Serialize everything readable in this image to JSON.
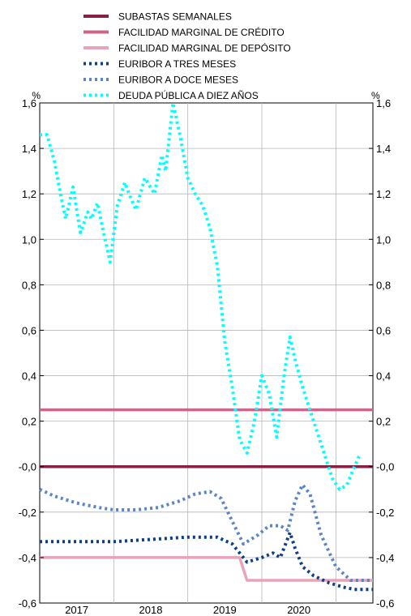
{
  "chart_data": {
    "type": "line",
    "ylabel_left": "%",
    "ylabel_right": "%",
    "ylim": [
      -0.6,
      1.6
    ],
    "yticks": [
      1.6,
      1.4,
      1.2,
      1.0,
      0.8,
      0.6,
      0.4,
      0.2,
      0.0,
      -0.2,
      -0.4,
      -0.6
    ],
    "ytick_labels": [
      "1,6",
      "1,4",
      "1,2",
      "1,0",
      "0,8",
      "0,6",
      "0,4",
      "0,2",
      "-0,0",
      "-0,2",
      "-0,4",
      "-0,6"
    ],
    "xlim": [
      2016.5,
      2021.0
    ],
    "year_boundaries": [
      2017.5,
      2018.5,
      2019.5,
      2020.5
    ],
    "xtick_labels": [
      {
        "label": "2017",
        "x": 2017.0
      },
      {
        "label": "2018",
        "x": 2018.0
      },
      {
        "label": "2019",
        "x": 2019.0
      },
      {
        "label": "2020",
        "x": 2020.0
      }
    ],
    "grid": true,
    "legend_position": "top-center",
    "series": [
      {
        "name": "SUBASTAS SEMANALES",
        "color": "#8a1f44",
        "style": "solid",
        "points": [
          [
            2016.5,
            0.0
          ],
          [
            2021.0,
            0.0
          ]
        ]
      },
      {
        "name": "FACILIDAD MARGINAL DE CRÉDITO",
        "color": "#cc6688",
        "style": "solid",
        "points": [
          [
            2016.5,
            0.25
          ],
          [
            2021.0,
            0.25
          ]
        ]
      },
      {
        "name": "FACILIDAD MARGINAL DE DEPÓSITO",
        "color": "#e8a3b8",
        "style": "solid",
        "points": [
          [
            2016.5,
            -0.4
          ],
          [
            2019.2,
            -0.4
          ],
          [
            2019.3,
            -0.5
          ],
          [
            2021.0,
            -0.5
          ]
        ]
      },
      {
        "name": "EURIBOR A TRES MESES",
        "color": "#0b3f8a",
        "style": "dotted",
        "points": [
          [
            2016.5,
            -0.33
          ],
          [
            2017.0,
            -0.33
          ],
          [
            2017.5,
            -0.33
          ],
          [
            2018.0,
            -0.32
          ],
          [
            2018.5,
            -0.31
          ],
          [
            2018.9,
            -0.31
          ],
          [
            2019.1,
            -0.34
          ],
          [
            2019.3,
            -0.42
          ],
          [
            2019.5,
            -0.4
          ],
          [
            2019.65,
            -0.38
          ],
          [
            2019.75,
            -0.4
          ],
          [
            2019.88,
            -0.29
          ],
          [
            2019.95,
            -0.36
          ],
          [
            2020.05,
            -0.44
          ],
          [
            2020.2,
            -0.48
          ],
          [
            2020.4,
            -0.51
          ],
          [
            2020.6,
            -0.53
          ],
          [
            2020.75,
            -0.54
          ],
          [
            2020.8,
            -0.54
          ],
          [
            2021.0,
            -0.54
          ]
        ]
      },
      {
        "name": "EURIBOR A DOCE MESES",
        "color": "#5a86c5",
        "style": "dotted",
        "points": [
          [
            2016.5,
            -0.1
          ],
          [
            2016.7,
            -0.13
          ],
          [
            2017.0,
            -0.16
          ],
          [
            2017.3,
            -0.18
          ],
          [
            2017.5,
            -0.19
          ],
          [
            2017.8,
            -0.19
          ],
          [
            2018.1,
            -0.18
          ],
          [
            2018.4,
            -0.15
          ],
          [
            2018.6,
            -0.12
          ],
          [
            2018.8,
            -0.11
          ],
          [
            2018.95,
            -0.14
          ],
          [
            2019.1,
            -0.24
          ],
          [
            2019.25,
            -0.34
          ],
          [
            2019.45,
            -0.3
          ],
          [
            2019.6,
            -0.26
          ],
          [
            2019.75,
            -0.26
          ],
          [
            2019.85,
            -0.28
          ],
          [
            2019.95,
            -0.15
          ],
          [
            2020.05,
            -0.08
          ],
          [
            2020.15,
            -0.12
          ],
          [
            2020.3,
            -0.3
          ],
          [
            2020.5,
            -0.44
          ],
          [
            2020.7,
            -0.5
          ],
          [
            2020.85,
            -0.5
          ],
          [
            2021.0,
            -0.5
          ]
        ]
      },
      {
        "name": "DEUDA PÚBLICA A DIEZ AÑOS",
        "color": "#00ffff",
        "style": "dotted",
        "points": [
          [
            2016.5,
            1.46
          ],
          [
            2016.6,
            1.46
          ],
          [
            2016.7,
            1.34
          ],
          [
            2016.78,
            1.2
          ],
          [
            2016.85,
            1.09
          ],
          [
            2016.95,
            1.23
          ],
          [
            2017.05,
            1.03
          ],
          [
            2017.15,
            1.12
          ],
          [
            2017.2,
            1.09
          ],
          [
            2017.28,
            1.16
          ],
          [
            2017.35,
            1.05
          ],
          [
            2017.45,
            0.9
          ],
          [
            2017.55,
            1.15
          ],
          [
            2017.65,
            1.25
          ],
          [
            2017.72,
            1.19
          ],
          [
            2017.8,
            1.13
          ],
          [
            2017.92,
            1.27
          ],
          [
            2018.05,
            1.2
          ],
          [
            2018.15,
            1.37
          ],
          [
            2018.2,
            1.3
          ],
          [
            2018.3,
            1.6
          ],
          [
            2018.4,
            1.45
          ],
          [
            2018.5,
            1.27
          ],
          [
            2018.6,
            1.2
          ],
          [
            2018.7,
            1.15
          ],
          [
            2018.8,
            1.05
          ],
          [
            2018.9,
            0.88
          ],
          [
            2019.0,
            0.55
          ],
          [
            2019.1,
            0.35
          ],
          [
            2019.2,
            0.12
          ],
          [
            2019.3,
            0.06
          ],
          [
            2019.4,
            0.2
          ],
          [
            2019.5,
            0.4
          ],
          [
            2019.6,
            0.32
          ],
          [
            2019.7,
            0.13
          ],
          [
            2019.8,
            0.4
          ],
          [
            2019.88,
            0.57
          ],
          [
            2019.95,
            0.47
          ],
          [
            2020.05,
            0.35
          ],
          [
            2020.2,
            0.2
          ],
          [
            2020.35,
            0.05
          ],
          [
            2020.45,
            -0.05
          ],
          [
            2020.55,
            -0.1
          ],
          [
            2020.65,
            -0.08
          ],
          [
            2020.75,
            0.0
          ],
          [
            2020.82,
            0.05
          ]
        ]
      }
    ]
  }
}
